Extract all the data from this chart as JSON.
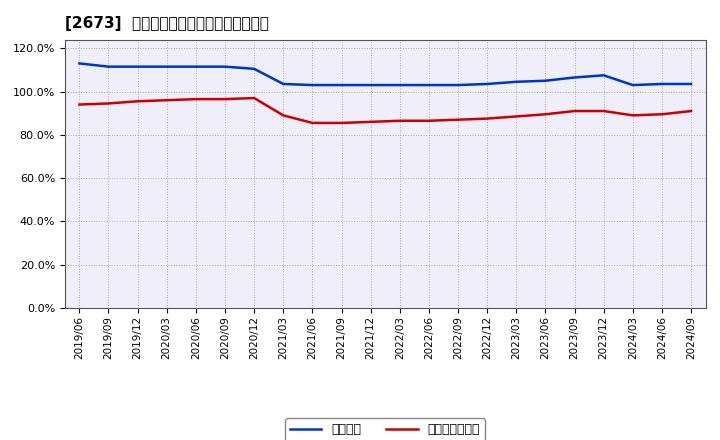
{
  "title": "[2673]  固定比率、固定長期適合率の推移",
  "x_labels": [
    "2019/06",
    "2019/09",
    "2019/12",
    "2020/03",
    "2020/06",
    "2020/09",
    "2020/12",
    "2021/03",
    "2021/06",
    "2021/09",
    "2021/12",
    "2022/03",
    "2022/06",
    "2022/09",
    "2022/12",
    "2023/03",
    "2023/06",
    "2023/09",
    "2023/12",
    "2024/03",
    "2024/06",
    "2024/09"
  ],
  "fixed_ratio": [
    113.0,
    111.5,
    111.5,
    111.5,
    111.5,
    111.5,
    110.5,
    103.5,
    103.0,
    103.0,
    103.0,
    103.0,
    103.0,
    103.0,
    103.5,
    104.5,
    105.0,
    106.5,
    107.5,
    103.0,
    103.5,
    103.5
  ],
  "fixed_long_ratio": [
    94.0,
    94.5,
    95.5,
    96.0,
    96.5,
    96.5,
    97.0,
    89.0,
    85.5,
    85.5,
    86.0,
    86.5,
    86.5,
    87.0,
    87.5,
    88.5,
    89.5,
    91.0,
    91.0,
    89.0,
    89.5,
    91.0
  ],
  "line_color_fixed": "#0033CC",
  "line_color_fixed_long": "#CC0000",
  "bg_figure": "#FFFFFF",
  "bg_axes": "#F0EEF8",
  "grid_color": "#AAAAAA",
  "ylim": [
    0,
    124
  ],
  "yticks": [
    0,
    20,
    40,
    60,
    80,
    100,
    120
  ],
  "legend_fixed": "固定比率",
  "legend_fixed_long": "固定長期適合率",
  "title_fontsize": 11,
  "tick_fontsize": 7.5,
  "legend_fontsize": 9,
  "linewidth": 1.8
}
